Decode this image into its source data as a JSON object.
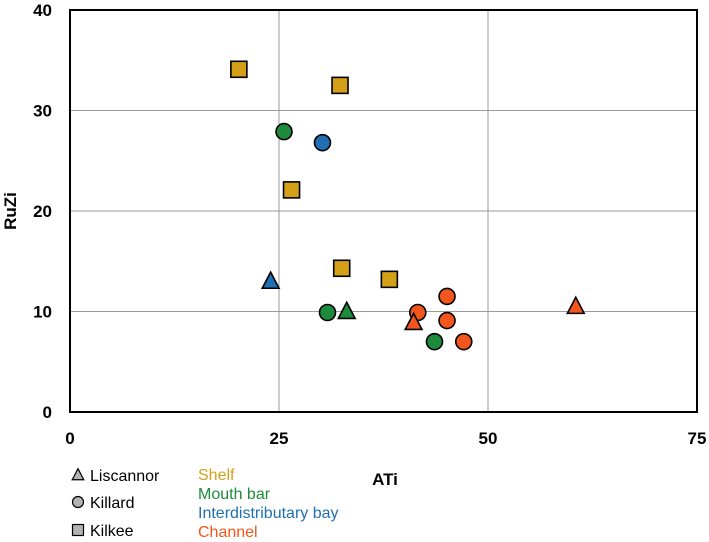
{
  "chart_data": {
    "type": "scatter",
    "xlabel": "ATi",
    "ylabel": "RuZi",
    "xlim": [
      0,
      75
    ],
    "ylim": [
      0,
      40
    ],
    "xticks": [
      0,
      25,
      50,
      75
    ],
    "yticks": [
      0,
      10,
      20,
      30,
      40
    ],
    "grid": true,
    "locations": [
      {
        "key": "liscannor",
        "name": "Liscannor",
        "marker": "triangle"
      },
      {
        "key": "killard",
        "name": "Killard",
        "marker": "circle"
      },
      {
        "key": "kilkee",
        "name": "Kilkee",
        "marker": "square"
      }
    ],
    "environments": [
      {
        "key": "shelf",
        "name": "Shelf",
        "color": "#D4A017"
      },
      {
        "key": "mouthbar",
        "name": "Mouth bar",
        "color": "#1E8A3C"
      },
      {
        "key": "interdistributary",
        "name": "Interdistributary bay",
        "color": "#1F6FB2"
      },
      {
        "key": "channel",
        "name": "Channel",
        "color": "#F2561D"
      }
    ],
    "points": [
      {
        "x": 20.2,
        "y": 34.1,
        "location": "kilkee",
        "environment": "shelf"
      },
      {
        "x": 32.3,
        "y": 32.5,
        "location": "kilkee",
        "environment": "shelf"
      },
      {
        "x": 26.5,
        "y": 22.1,
        "location": "kilkee",
        "environment": "shelf"
      },
      {
        "x": 32.5,
        "y": 14.3,
        "location": "kilkee",
        "environment": "shelf"
      },
      {
        "x": 38.2,
        "y": 13.2,
        "location": "kilkee",
        "environment": "shelf"
      },
      {
        "x": 25.6,
        "y": 27.9,
        "location": "killard",
        "environment": "mouthbar"
      },
      {
        "x": 30.8,
        "y": 9.9,
        "location": "killard",
        "environment": "mouthbar"
      },
      {
        "x": 43.6,
        "y": 7.0,
        "location": "killard",
        "environment": "mouthbar"
      },
      {
        "x": 33.1,
        "y": 10.0,
        "location": "liscannor",
        "environment": "mouthbar"
      },
      {
        "x": 30.2,
        "y": 26.8,
        "location": "killard",
        "environment": "interdistributary"
      },
      {
        "x": 24.0,
        "y": 13.0,
        "location": "liscannor",
        "environment": "interdistributary"
      },
      {
        "x": 41.6,
        "y": 9.9,
        "location": "killard",
        "environment": "channel"
      },
      {
        "x": 45.1,
        "y": 11.5,
        "location": "killard",
        "environment": "channel"
      },
      {
        "x": 45.1,
        "y": 9.1,
        "location": "killard",
        "environment": "channel"
      },
      {
        "x": 47.1,
        "y": 7.0,
        "location": "killard",
        "environment": "channel"
      },
      {
        "x": 41.1,
        "y": 8.9,
        "location": "liscannor",
        "environment": "channel"
      },
      {
        "x": 60.5,
        "y": 10.5,
        "location": "liscannor",
        "environment": "channel"
      }
    ]
  }
}
